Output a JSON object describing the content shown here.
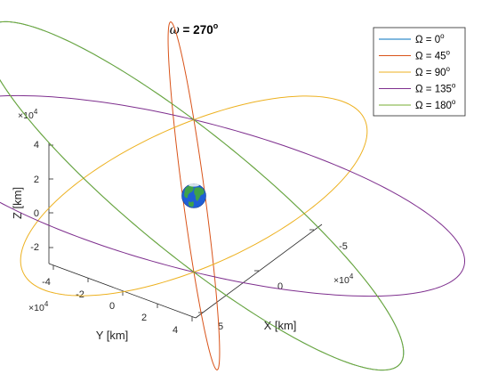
{
  "chart_data": {
    "type": "line",
    "title_prefix": "ω",
    "title_value": " = 270",
    "title_unit": "o",
    "xlabel": "X [km]",
    "ylabel": "Y [km]",
    "zlabel": "Z [km]",
    "multiplier": "×10",
    "multiplier_exp": "4",
    "x_ticks": [
      "-5",
      "0",
      "5"
    ],
    "y_ticks": [
      "-4",
      "-2",
      "0",
      "2",
      "4"
    ],
    "z_ticks": [
      "-2",
      "0",
      "2",
      "4"
    ],
    "xlim": [
      -60000,
      60000
    ],
    "ylim": [
      -45000,
      45000
    ],
    "zlim": [
      -30000,
      48000
    ],
    "legend_position": "top-right",
    "legend_symbol": "Ω",
    "orbit": {
      "a_km": 45000,
      "omega_deg": 270
    },
    "series": [
      {
        "name": "Ω = 0°",
        "label_prefix": "Ω = 0",
        "label_unit": "o",
        "Omega_deg": 0,
        "color": "#0072BD"
      },
      {
        "name": "Ω = 45°",
        "label_prefix": "Ω = 45",
        "label_unit": "o",
        "Omega_deg": 45,
        "color": "#D95319"
      },
      {
        "name": "Ω = 90°",
        "label_prefix": "Ω = 90",
        "label_unit": "o",
        "Omega_deg": 90,
        "color": "#EDB120"
      },
      {
        "name": "Ω = 135°",
        "label_prefix": "Ω = 135",
        "label_unit": "o",
        "Omega_deg": 135,
        "color": "#7E2F8E"
      },
      {
        "name": "Ω = 180°",
        "label_prefix": "Ω = 180",
        "label_unit": "o",
        "Omega_deg": 180,
        "color": "#77AC30"
      }
    ],
    "planet": {
      "name": "Earth",
      "ocean_color": "#1f5fd6",
      "land_color": "#3fa24a"
    }
  }
}
